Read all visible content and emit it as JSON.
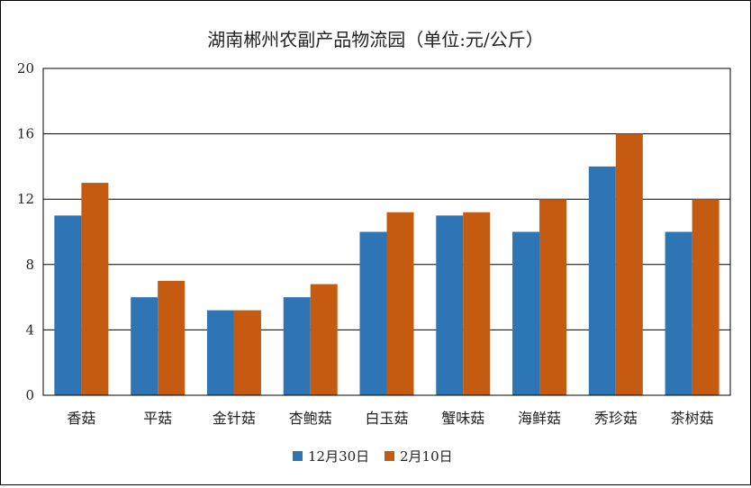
{
  "chart_data": {
    "type": "bar",
    "title": "湖南郴州农副产品物流园（单位:元/公斤）",
    "categories": [
      "香菇",
      "平菇",
      "金针菇",
      "杏鲍菇",
      "白玉菇",
      "蟹味菇",
      "海鲜菇",
      "秀珍菇",
      "茶树菇"
    ],
    "series": [
      {
        "name": "12月30日",
        "color": "#2e75b6",
        "values": [
          11,
          6,
          5.2,
          6,
          10,
          11,
          10,
          14,
          10
        ]
      },
      {
        "name": "2月10日",
        "color": "#c55a11",
        "values": [
          13,
          7,
          5.2,
          6.8,
          11.2,
          11.2,
          12,
          16,
          12
        ]
      }
    ],
    "ylim": [
      0,
      20
    ],
    "yticks": [
      "0",
      "4",
      "8",
      "12",
      "16",
      "20"
    ],
    "grid": true,
    "legend_position": "bottom"
  }
}
